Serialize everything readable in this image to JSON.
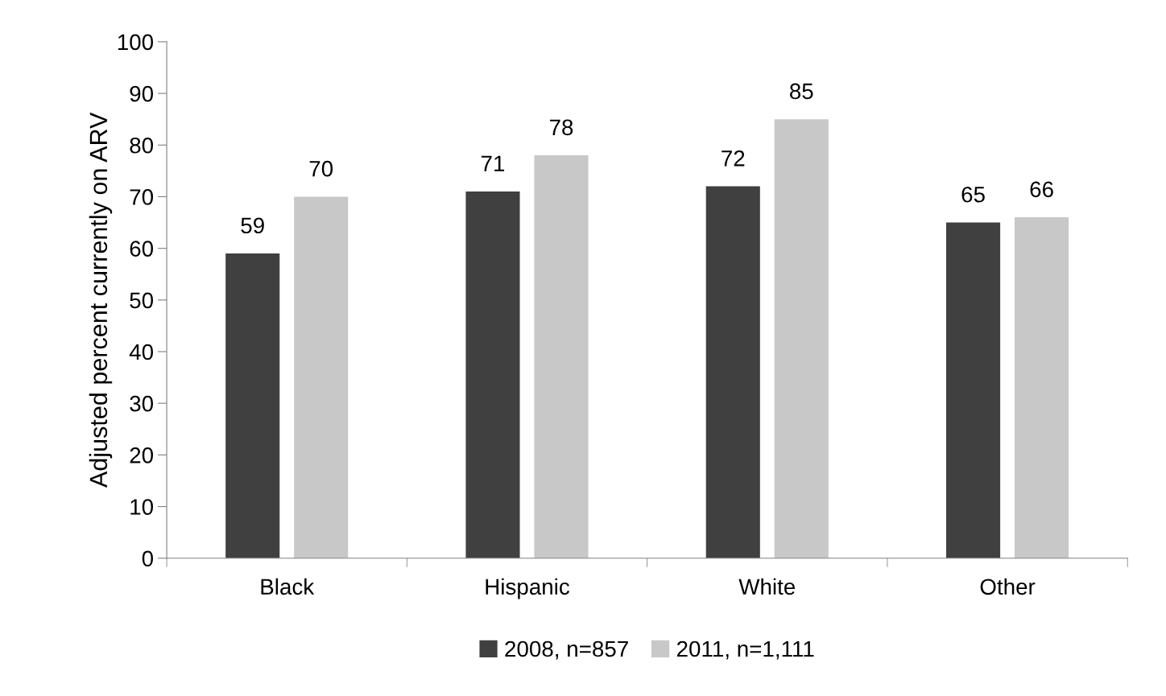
{
  "chart_data": {
    "type": "bar",
    "ylabel": "Adjusted percent currently on ARV",
    "categories": [
      "Black",
      "Hispanic",
      "White",
      "Other"
    ],
    "series": [
      {
        "name": "2008, n=857",
        "color": "#404040",
        "values": [
          59,
          71,
          72,
          65
        ]
      },
      {
        "name": "2011, n=1,111",
        "color": "#c8c8c8",
        "values": [
          70,
          78,
          85,
          66
        ]
      }
    ],
    "ylim": [
      0,
      100
    ],
    "yticks": [
      0,
      10,
      20,
      30,
      40,
      50,
      60,
      70,
      80,
      90,
      100
    ],
    "data_labels": true,
    "grid": false,
    "legend": "bottom"
  }
}
